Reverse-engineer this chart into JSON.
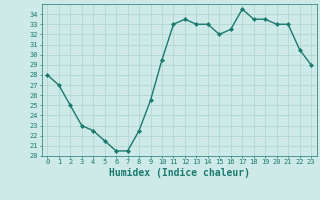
{
  "x": [
    0,
    1,
    2,
    3,
    4,
    5,
    6,
    7,
    8,
    9,
    10,
    11,
    12,
    13,
    14,
    15,
    16,
    17,
    18,
    19,
    20,
    21,
    22,
    23
  ],
  "y": [
    28,
    27,
    25,
    23,
    22.5,
    21.5,
    20.5,
    20.5,
    22.5,
    25.5,
    29.5,
    33,
    33.5,
    33,
    33,
    32,
    32.5,
    34.5,
    33.5,
    33.5,
    33,
    33,
    30.5,
    29
  ],
  "line_color": "#1a7a6e",
  "marker": "D",
  "marker_size": 2,
  "xlabel": "Humidex (Indice chaleur)",
  "xlabel_fontsize": 7,
  "ylim": [
    20,
    35
  ],
  "xlim": [
    -0.5,
    23.5
  ],
  "yticks": [
    20,
    21,
    22,
    23,
    24,
    25,
    26,
    27,
    28,
    29,
    30,
    31,
    32,
    33,
    34
  ],
  "xticks": [
    0,
    1,
    2,
    3,
    4,
    5,
    6,
    7,
    8,
    9,
    10,
    11,
    12,
    13,
    14,
    15,
    16,
    17,
    18,
    19,
    20,
    21,
    22,
    23
  ],
  "background_color": "#ceeae8",
  "grid_color": "#aed4d1",
  "tick_fontsize": 5,
  "line_width": 1.0
}
